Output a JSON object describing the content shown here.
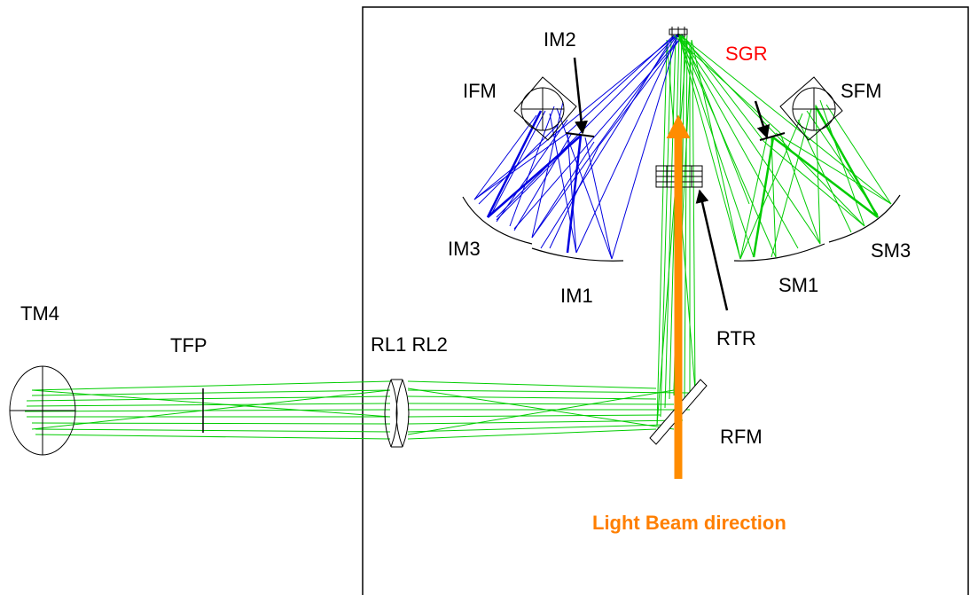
{
  "labels": {
    "tm4": "TM4",
    "tfp": "TFP",
    "rl": "RL1 RL2",
    "ifm": "IFM",
    "im2": "IM2",
    "im3": "IM3",
    "im1": "IM1",
    "sgr": "SGR",
    "sfm": "SFM",
    "sm1": "SM1",
    "sm3": "SM3",
    "rtr": "RTR",
    "rfm": "RFM",
    "beam": "Light Beam direction"
  },
  "colors": {
    "green_rays": "#00cc00",
    "blue_rays": "#0000e0",
    "beam_arrow": "#ff8c00",
    "sgr_label": "#ff0000",
    "outline": "#000000"
  }
}
